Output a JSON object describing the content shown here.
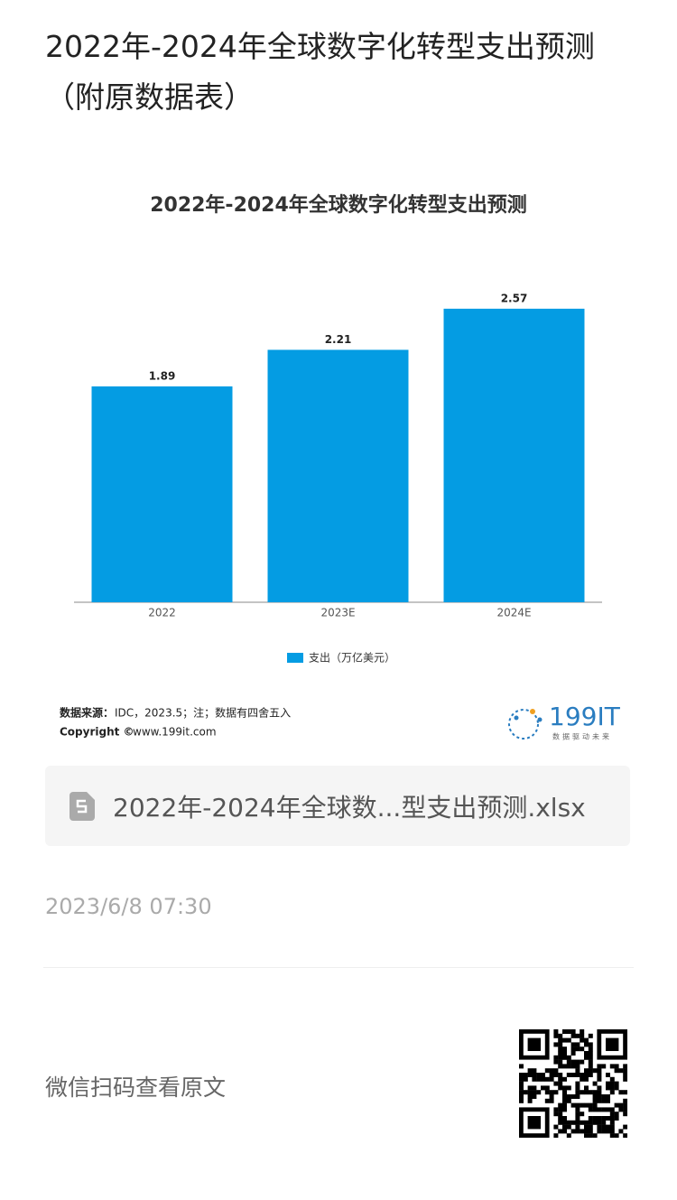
{
  "header": {
    "title": "2022年-2024年全球数字化转型支出预测（附原数据表）"
  },
  "chart_data": {
    "type": "bar",
    "title": "2022年-2024年全球数字化转型支出预测",
    "categories": [
      "2022",
      "2023E",
      "2024E"
    ],
    "series": [
      {
        "name": "支出（万亿美元）",
        "color": "#049ce3",
        "values": [
          1.89,
          2.21,
          2.57
        ]
      }
    ]
  },
  "source": {
    "label": "数据来源：",
    "text": "IDC，2023.5；注；数据有四舍五入",
    "copyright_label": "Copyright ©",
    "copyright_text": "www.199it.com",
    "logo": "199IT",
    "slogan": "数据驱动未来"
  },
  "attachment": {
    "file_name": "2022年-2024年全球数...型支出预测.xlsx"
  },
  "meta": {
    "date": "2023/6/8 07:30",
    "scan_hint": "微信扫码查看原文"
  }
}
